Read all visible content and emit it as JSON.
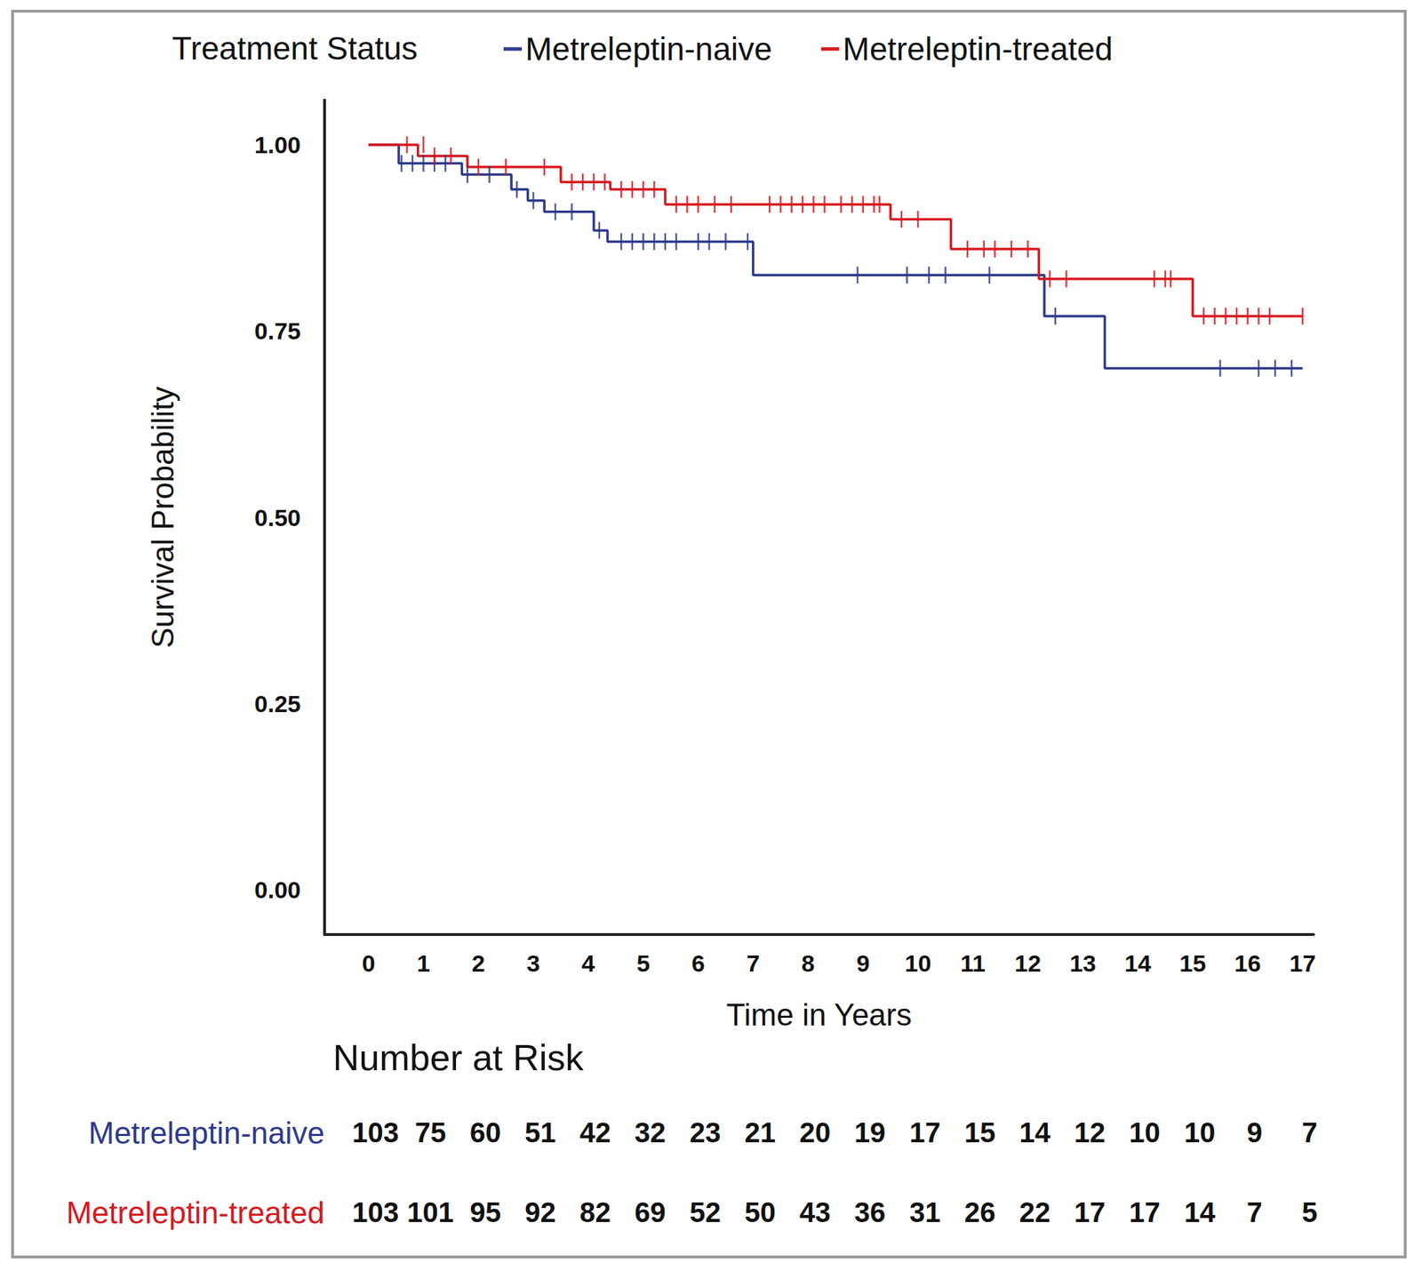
{
  "chart_data": {
    "type": "step",
    "legend_title": "Treatment Status",
    "legend": "top",
    "x_label": "Time in Years",
    "y_label": "Survival Probability",
    "xlim": [
      -0.8,
      17.2
    ],
    "xticks": [
      0,
      1,
      2,
      3,
      4,
      5,
      6,
      7,
      8,
      9,
      10,
      11,
      12,
      13,
      14,
      15,
      16,
      17
    ],
    "ylim": [
      -0.06,
      1.06
    ],
    "yticks": [
      {
        "value": 0,
        "label": "0.00"
      },
      {
        "value": 0.25,
        "label": "0.25"
      },
      {
        "value": 0.5,
        "label": "0.50"
      },
      {
        "value": 0.75,
        "label": "0.75"
      },
      {
        "value": 1,
        "label": "1.00"
      }
    ],
    "grid": false,
    "series": [
      {
        "name": "Metreleptin-naive",
        "color": "#2e3a8c",
        "marker": "vline",
        "x": [
          0,
          0.55,
          1.7,
          2.6,
          2.9,
          3.2,
          4.1,
          4.35,
          7.0,
          12.3,
          13.4,
          17.0
        ],
        "values": [
          1.0,
          0.975,
          0.96,
          0.94,
          0.925,
          0.91,
          0.885,
          0.87,
          0.825,
          0.77,
          0.7,
          0.7
        ],
        "censored": {
          "x": [
            0.6,
            0.8,
            1.0,
            1.2,
            1.4,
            1.8,
            2.2,
            2.7,
            3.0,
            3.4,
            3.7,
            4.2,
            4.6,
            4.8,
            5.0,
            5.2,
            5.4,
            5.6,
            6.0,
            6.2,
            6.5,
            6.9,
            8.9,
            9.8,
            10.2,
            10.5,
            11.3,
            12.5,
            15.5,
            16.2,
            16.5,
            16.8
          ],
          "values": [
            0.975,
            0.975,
            0.975,
            0.975,
            0.975,
            0.96,
            0.96,
            0.94,
            0.925,
            0.91,
            0.91,
            0.885,
            0.87,
            0.87,
            0.87,
            0.87,
            0.87,
            0.87,
            0.87,
            0.87,
            0.87,
            0.87,
            0.825,
            0.825,
            0.825,
            0.825,
            0.825,
            0.77,
            0.7,
            0.7,
            0.7,
            0.7
          ]
        }
      },
      {
        "name": "Metreleptin-treated",
        "color": "#d7191f",
        "marker": "vline",
        "x": [
          0,
          0.9,
          1.8,
          3.5,
          4.4,
          5.4,
          9.5,
          10.6,
          12.2,
          15.0,
          17.0
        ],
        "values": [
          1.0,
          0.985,
          0.97,
          0.95,
          0.94,
          0.92,
          0.9,
          0.86,
          0.82,
          0.77,
          0.77
        ],
        "censored": {
          "x": [
            0.7,
            1.0,
            1.2,
            1.5,
            2.0,
            2.5,
            3.2,
            3.7,
            3.9,
            4.1,
            4.3,
            4.6,
            4.8,
            5.0,
            5.2,
            5.6,
            5.8,
            6.0,
            6.3,
            6.6,
            7.3,
            7.5,
            7.7,
            7.9,
            8.1,
            8.3,
            8.6,
            8.8,
            9.0,
            9.2,
            9.3,
            9.7,
            10.0,
            10.9,
            11.2,
            11.4,
            11.7,
            12.0,
            12.4,
            12.7,
            14.3,
            14.5,
            14.6,
            15.2,
            15.4,
            15.6,
            15.8,
            16.0,
            16.2,
            16.4,
            17.0
          ],
          "values": [
            1.0,
            1.0,
            0.985,
            0.985,
            0.97,
            0.97,
            0.97,
            0.95,
            0.95,
            0.95,
            0.95,
            0.94,
            0.94,
            0.94,
            0.94,
            0.92,
            0.92,
            0.92,
            0.92,
            0.92,
            0.92,
            0.92,
            0.92,
            0.92,
            0.92,
            0.92,
            0.92,
            0.92,
            0.92,
            0.92,
            0.92,
            0.9,
            0.9,
            0.86,
            0.86,
            0.86,
            0.86,
            0.86,
            0.82,
            0.82,
            0.82,
            0.82,
            0.82,
            0.77,
            0.77,
            0.77,
            0.77,
            0.77,
            0.77,
            0.77,
            0.77
          ]
        }
      }
    ],
    "risk_table": {
      "title": "Number at Risk",
      "times": [
        0,
        1,
        2,
        3,
        4,
        5,
        6,
        7,
        8,
        9,
        10,
        11,
        12,
        13,
        14,
        15,
        16,
        17
      ],
      "rows": [
        {
          "name": "Metreleptin-naive",
          "color": "#2e3a8c",
          "values": [
            103,
            75,
            60,
            51,
            42,
            32,
            23,
            21,
            20,
            19,
            17,
            15,
            14,
            12,
            10,
            10,
            9,
            7
          ]
        },
        {
          "name": "Metreleptin-treated",
          "color": "#d7191f",
          "values": [
            103,
            101,
            95,
            92,
            82,
            69,
            52,
            50,
            43,
            36,
            31,
            26,
            22,
            17,
            17,
            14,
            7,
            5
          ]
        }
      ]
    }
  }
}
